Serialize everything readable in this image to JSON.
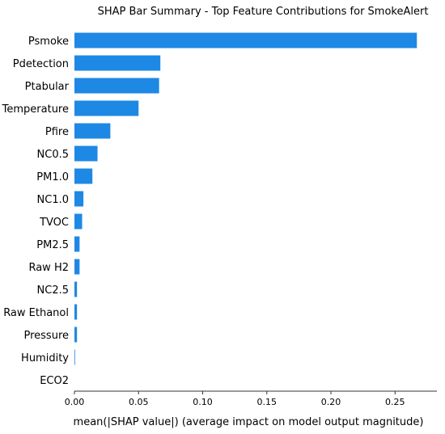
{
  "chart_data": {
    "type": "bar",
    "orientation": "horizontal",
    "title": "SHAP Bar Summary - Top Feature Contributions for SmokeAlert",
    "xlabel": "mean(|SHAP value|) (average impact on model output magnitude)",
    "ylabel": "",
    "xlim": [
      0,
      0.27
    ],
    "xticks": [
      "0.00",
      "0.05",
      "0.10",
      "0.15",
      "0.20",
      "0.25"
    ],
    "categories": [
      "Psmoke",
      "Pdetection",
      "Ptabular",
      "Temperature",
      "Pfire",
      "NC0.5",
      "PM1.0",
      "NC1.0",
      "TVOC",
      "PM2.5",
      "Raw H2",
      "NC2.5",
      "Raw Ethanol",
      "Pressure",
      "Humidity",
      "ECO2"
    ],
    "values": [
      0.267,
      0.067,
      0.066,
      0.05,
      0.028,
      0.018,
      0.014,
      0.007,
      0.006,
      0.004,
      0.004,
      0.002,
      0.002,
      0.002,
      0.0005,
      0.0
    ],
    "bar_color": "#1e88e5",
    "grid": false
  }
}
